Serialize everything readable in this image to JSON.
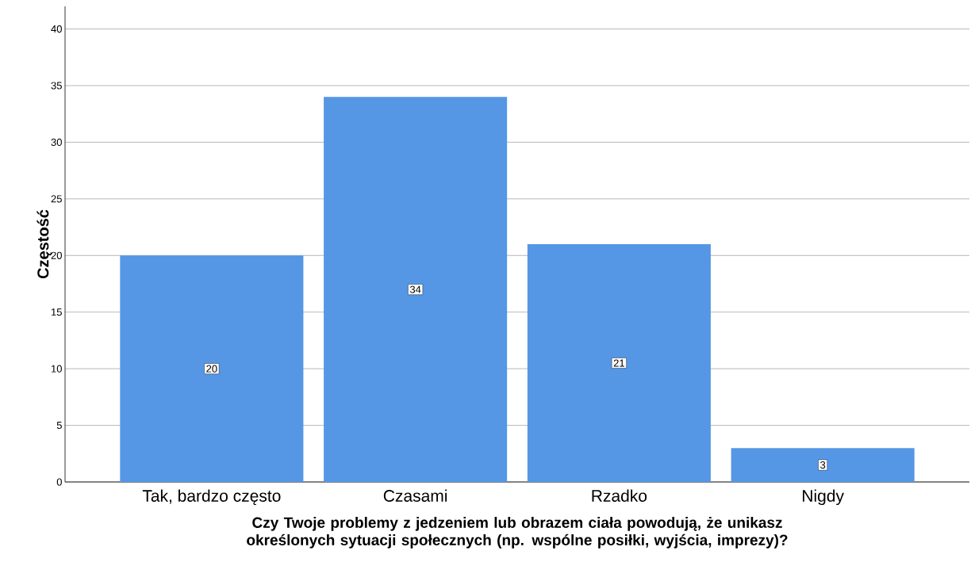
{
  "chart_data": {
    "type": "bar",
    "xlabel": "Czy Twoje problemy z jedzeniem lub obrazem ciała powodują, że unikasz określonych sytuacji społecznych (np. wspólne posiłki, wyjścia, imprezy)?",
    "ylabel": "Częstość",
    "categories": [
      "Tak, bardzo często",
      "Czasami",
      "Rzadko",
      "Nigdy"
    ],
    "values": [
      20,
      34,
      21,
      3
    ],
    "color": "#5597e5",
    "ylim": [
      0,
      42
    ],
    "yticks": [
      0,
      5,
      10,
      15,
      20,
      25,
      30,
      35,
      40
    ],
    "grid": "y",
    "data_labels": true
  }
}
